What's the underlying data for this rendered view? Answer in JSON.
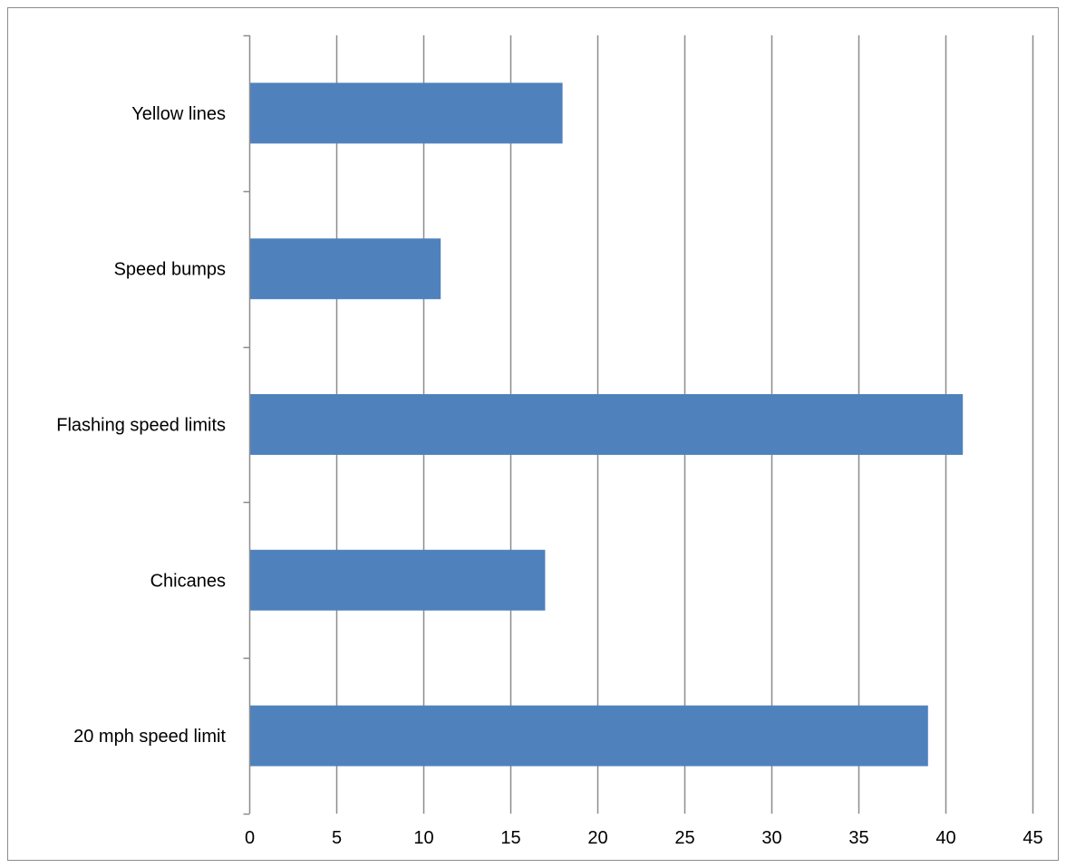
{
  "chart_data": {
    "type": "bar",
    "orientation": "horizontal",
    "categories": [
      "20 mph speed limit",
      "Chicanes",
      "Flashing speed limits",
      "Speed bumps",
      "Yellow lines"
    ],
    "values": [
      39,
      17,
      41,
      11,
      18
    ],
    "title": "",
    "xlabel": "",
    "ylabel": "",
    "xlim": [
      0,
      45
    ],
    "xticks": [
      0,
      5,
      10,
      15,
      20,
      25,
      30,
      35,
      40,
      45
    ],
    "xtick_labels": [
      "0",
      "5",
      "10",
      "15",
      "20",
      "25",
      "30",
      "35",
      "40",
      "45"
    ],
    "grid": "vertical",
    "legend": "none",
    "colors": {
      "bar": "#4f81bd",
      "grid": "#8c8c8c",
      "axis": "#8c8c8c",
      "text": "#000000"
    }
  }
}
